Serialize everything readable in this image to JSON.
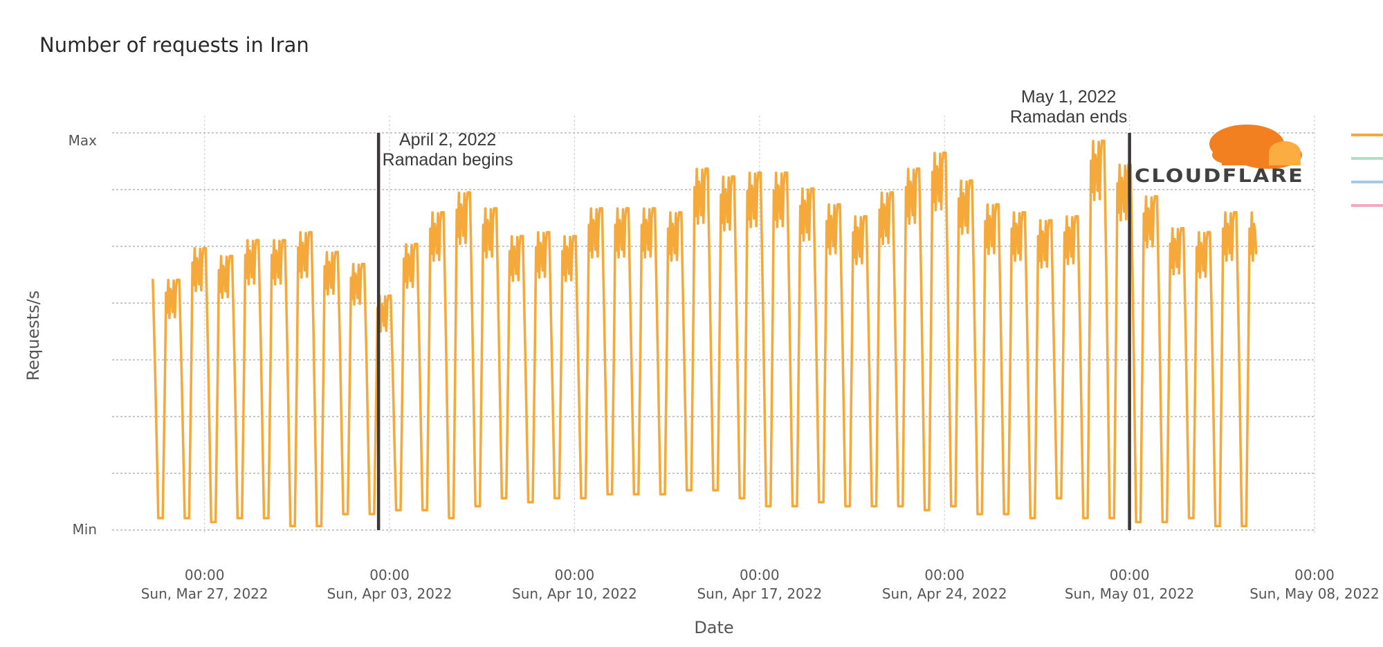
{
  "chart_data": {
    "type": "line",
    "title": "Number of requests in Iran",
    "xlabel": "Date",
    "ylabel": "Requests/s",
    "y_tick_labels": [
      "Min",
      "Max"
    ],
    "ylim": [
      0,
      1
    ],
    "xlim": [
      "2022-03-23T12:00",
      "2022-05-08T00:00"
    ],
    "x_ticks": [
      {
        "date": "2022-03-27T00:00",
        "time": "00:00",
        "label": "Sun, Mar 27, 2022"
      },
      {
        "date": "2022-04-03T00:00",
        "time": "00:00",
        "label": "Sun, Apr 03, 2022"
      },
      {
        "date": "2022-04-10T00:00",
        "time": "00:00",
        "label": "Sun, Apr 10, 2022"
      },
      {
        "date": "2022-04-17T00:00",
        "time": "00:00",
        "label": "Sun, Apr 17, 2022"
      },
      {
        "date": "2022-04-24T00:00",
        "time": "00:00",
        "label": "Sun, Apr 24, 2022"
      },
      {
        "date": "2022-05-01T00:00",
        "time": "00:00",
        "label": "Sun, May 01, 2022"
      },
      {
        "date": "2022-05-08T00:00",
        "time": "00:00",
        "label": "Sun, May 08, 2022"
      }
    ],
    "grid": true,
    "legend": "right",
    "series": [
      {
        "color": "#f6a93b",
        "x_start": "2022-03-25T01:00",
        "x_end": "2022-05-05T19:00",
        "daily_peaks": [
          0.63,
          0.71,
          0.69,
          0.73,
          0.73,
          0.75,
          0.7,
          0.67,
          0.59,
          0.72,
          0.8,
          0.85,
          0.81,
          0.74,
          0.75,
          0.74,
          0.81,
          0.81,
          0.81,
          0.8,
          0.91,
          0.89,
          0.9,
          0.9,
          0.86,
          0.82,
          0.79,
          0.85,
          0.91,
          0.95,
          0.88,
          0.82,
          0.8,
          0.78,
          0.79,
          0.98,
          0.92,
          0.84,
          0.76,
          0.75,
          0.8
        ],
        "daily_troughs": [
          0.03,
          0.03,
          0.02,
          0.03,
          0.03,
          0.01,
          0.01,
          0.04,
          0.04,
          0.05,
          0.05,
          0.03,
          0.06,
          0.08,
          0.07,
          0.08,
          0.08,
          0.09,
          0.09,
          0.09,
          0.1,
          0.1,
          0.08,
          0.06,
          0.06,
          0.07,
          0.06,
          0.06,
          0.06,
          0.05,
          0.06,
          0.04,
          0.04,
          0.03,
          0.08,
          0.03,
          0.03,
          0.02,
          0.02,
          0.03,
          0.01
        ]
      },
      {
        "color": "#a8e2c4"
      },
      {
        "color": "#a5c8ec"
      },
      {
        "color": "#f2a9bf"
      }
    ],
    "annotations": [
      {
        "x": "2022-04-02T14:00",
        "date_text": "April 2, 2022",
        "event_text": "Ramadan begins"
      },
      {
        "x": "2022-05-01T00:00",
        "date_text": "May 1, 2022",
        "event_text": "Ramadan ends"
      }
    ],
    "watermark": "CLOUDFLARE"
  }
}
